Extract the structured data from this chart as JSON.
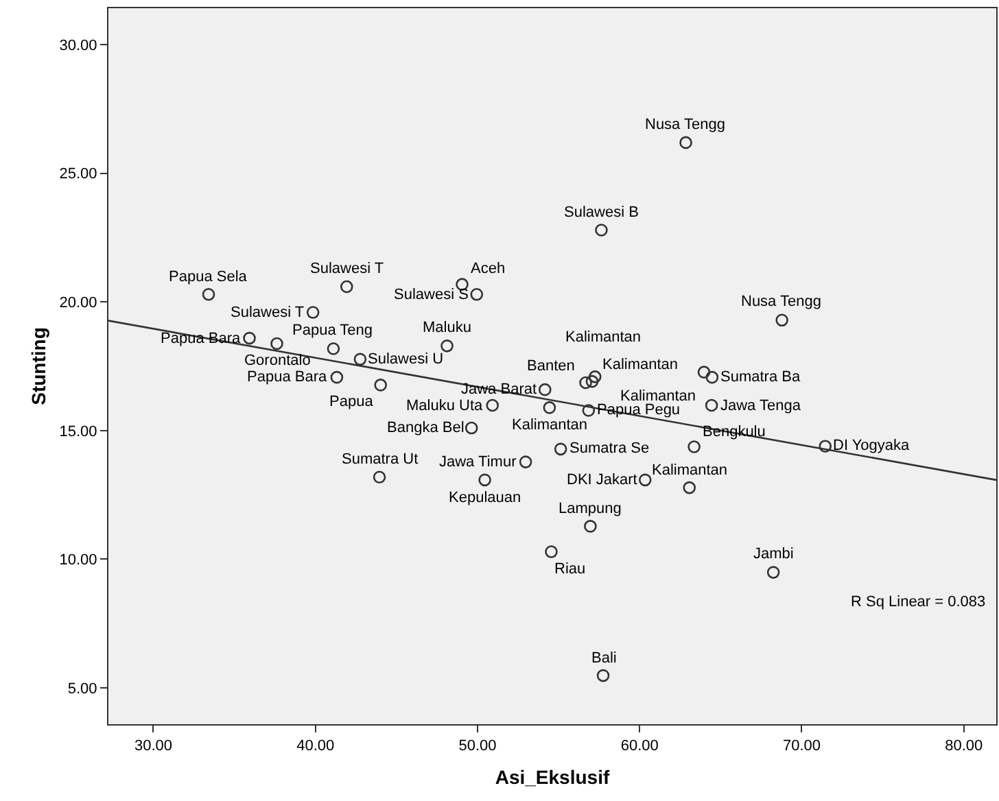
{
  "chart_data": {
    "type": "scatter",
    "xlabel": "Asi_Ekslusif",
    "ylabel": "Stunting",
    "xlim": [
      27.23,
      82.0
    ],
    "ylim": [
      3.59,
      31.41
    ],
    "xticks": [
      {
        "value": 30,
        "label": "30.00"
      },
      {
        "value": 40,
        "label": "40.00"
      },
      {
        "value": 50,
        "label": "50.00"
      },
      {
        "value": 60,
        "label": "60.00"
      },
      {
        "value": 70,
        "label": "70.00"
      },
      {
        "value": 80,
        "label": "80.00"
      }
    ],
    "yticks": [
      {
        "value": 5,
        "label": "5.00"
      },
      {
        "value": 10,
        "label": "10.00"
      },
      {
        "value": 15,
        "label": "15.00"
      },
      {
        "value": 20,
        "label": "20.00"
      },
      {
        "value": 25,
        "label": "25.00"
      },
      {
        "value": 30,
        "label": "30.00"
      }
    ],
    "marker": "circle",
    "grid": false,
    "series": [
      {
        "color": "#333333",
        "x": [
          62.85,
          57.64,
          33.41,
          41.93,
          49.05,
          49.95,
          39.85,
          68.78,
          35.93,
          37.62,
          41.11,
          48.12,
          42.76,
          41.32,
          44.02,
          54.16,
          56.67,
          57.07,
          57.25,
          63.97,
          64.47,
          64.44,
          50.92,
          54.44,
          56.85,
          49.63,
          63.36,
          71.45,
          55.13,
          52.97,
          43.95,
          50.45,
          60.34,
          63.07,
          56.96,
          54.55,
          68.25,
          57.75
        ],
        "values": [
          26.19,
          22.79,
          20.29,
          20.59,
          20.68,
          20.29,
          19.59,
          19.29,
          18.59,
          18.38,
          18.18,
          18.29,
          17.77,
          17.07,
          16.77,
          16.59,
          16.86,
          16.91,
          17.09,
          17.27,
          17.07,
          15.98,
          15.98,
          15.89,
          15.78,
          15.1,
          14.37,
          14.39,
          14.28,
          13.78,
          13.19,
          13.08,
          13.08,
          12.78,
          11.28,
          10.29,
          9.49,
          5.48
        ]
      },
      {
        "type": "line",
        "color": "#333333",
        "x": [
          27.23,
          82.0
        ],
        "values": [
          19.27,
          13.08
        ],
        "marker": "none"
      }
    ],
    "annotations": [
      {
        "text": "Nusa Tengg",
        "x": 62.85,
        "y": 26.19
      },
      {
        "text": "Sulawesi B",
        "x": 57.64,
        "y": 22.79
      },
      {
        "text": "Papua Sela",
        "x": 33.41,
        "y": 20.29
      },
      {
        "text": "Sulawesi T",
        "x": 41.93,
        "y": 20.59
      },
      {
        "text": "Aceh",
        "x": 49.05,
        "y": 20.68
      },
      {
        "text": "Sulawesi S",
        "x": 49.95,
        "y": 20.29
      },
      {
        "text": "Sulawesi T",
        "x": 39.85,
        "y": 19.59
      },
      {
        "text": "Nusa Tengg",
        "x": 68.78,
        "y": 19.29
      },
      {
        "text": "Papua Bara",
        "x": 35.93,
        "y": 18.59
      },
      {
        "text": "Gorontalo",
        "x": 37.62,
        "y": 18.38
      },
      {
        "text": "Papua Teng",
        "x": 41.11,
        "y": 18.18
      },
      {
        "text": "Maluku",
        "x": 48.12,
        "y": 18.29
      },
      {
        "text": "Sulawesi U",
        "x": 42.76,
        "y": 17.77
      },
      {
        "text": "Papua Bara",
        "x": 41.32,
        "y": 17.07
      },
      {
        "text": "Papua",
        "x": 44.02,
        "y": 16.77
      },
      {
        "text": "Jawa Barat",
        "x": 54.16,
        "y": 16.59
      },
      {
        "text": "Banten",
        "x": 56.67,
        "y": 16.86
      },
      {
        "text": "Kalimantan",
        "x": 57.07,
        "y": 16.91
      },
      {
        "text": "Kalimantan",
        "x": 57.25,
        "y": 17.09
      },
      {
        "text": "Kalimantan",
        "x": 63.97,
        "y": 17.27
      },
      {
        "text": "Sumatra Ba",
        "x": 64.47,
        "y": 17.07
      },
      {
        "text": "Jawa Tenga",
        "x": 64.44,
        "y": 15.98
      },
      {
        "text": "Maluku Uta",
        "x": 50.92,
        "y": 15.98
      },
      {
        "text": "Kalimantan",
        "x": 54.44,
        "y": 15.89
      },
      {
        "text": "Papua Pegu",
        "x": 56.85,
        "y": 15.78
      },
      {
        "text": "Bangka Bel",
        "x": 49.63,
        "y": 15.1
      },
      {
        "text": "Bengkulu",
        "x": 63.36,
        "y": 14.37
      },
      {
        "text": "DI Yogyaka",
        "x": 71.45,
        "y": 14.39
      },
      {
        "text": "Sumatra Se",
        "x": 55.13,
        "y": 14.28
      },
      {
        "text": "Jawa Timur",
        "x": 52.97,
        "y": 13.78
      },
      {
        "text": "Sumatra Ut",
        "x": 43.95,
        "y": 13.19
      },
      {
        "text": "Kepulauan",
        "x": 50.45,
        "y": 13.08
      },
      {
        "text": "DKI Jakart",
        "x": 60.34,
        "y": 13.08
      },
      {
        "text": "Kalimantan",
        "x": 63.07,
        "y": 12.78
      },
      {
        "text": "Lampung",
        "x": 56.96,
        "y": 11.28
      },
      {
        "text": "Riau",
        "x": 54.55,
        "y": 10.29
      },
      {
        "text": "Jambi",
        "x": 68.25,
        "y": 9.49
      },
      {
        "text": "Bali",
        "x": 57.75,
        "y": 5.48
      },
      "R Sq Linear = 0.083"
    ]
  }
}
